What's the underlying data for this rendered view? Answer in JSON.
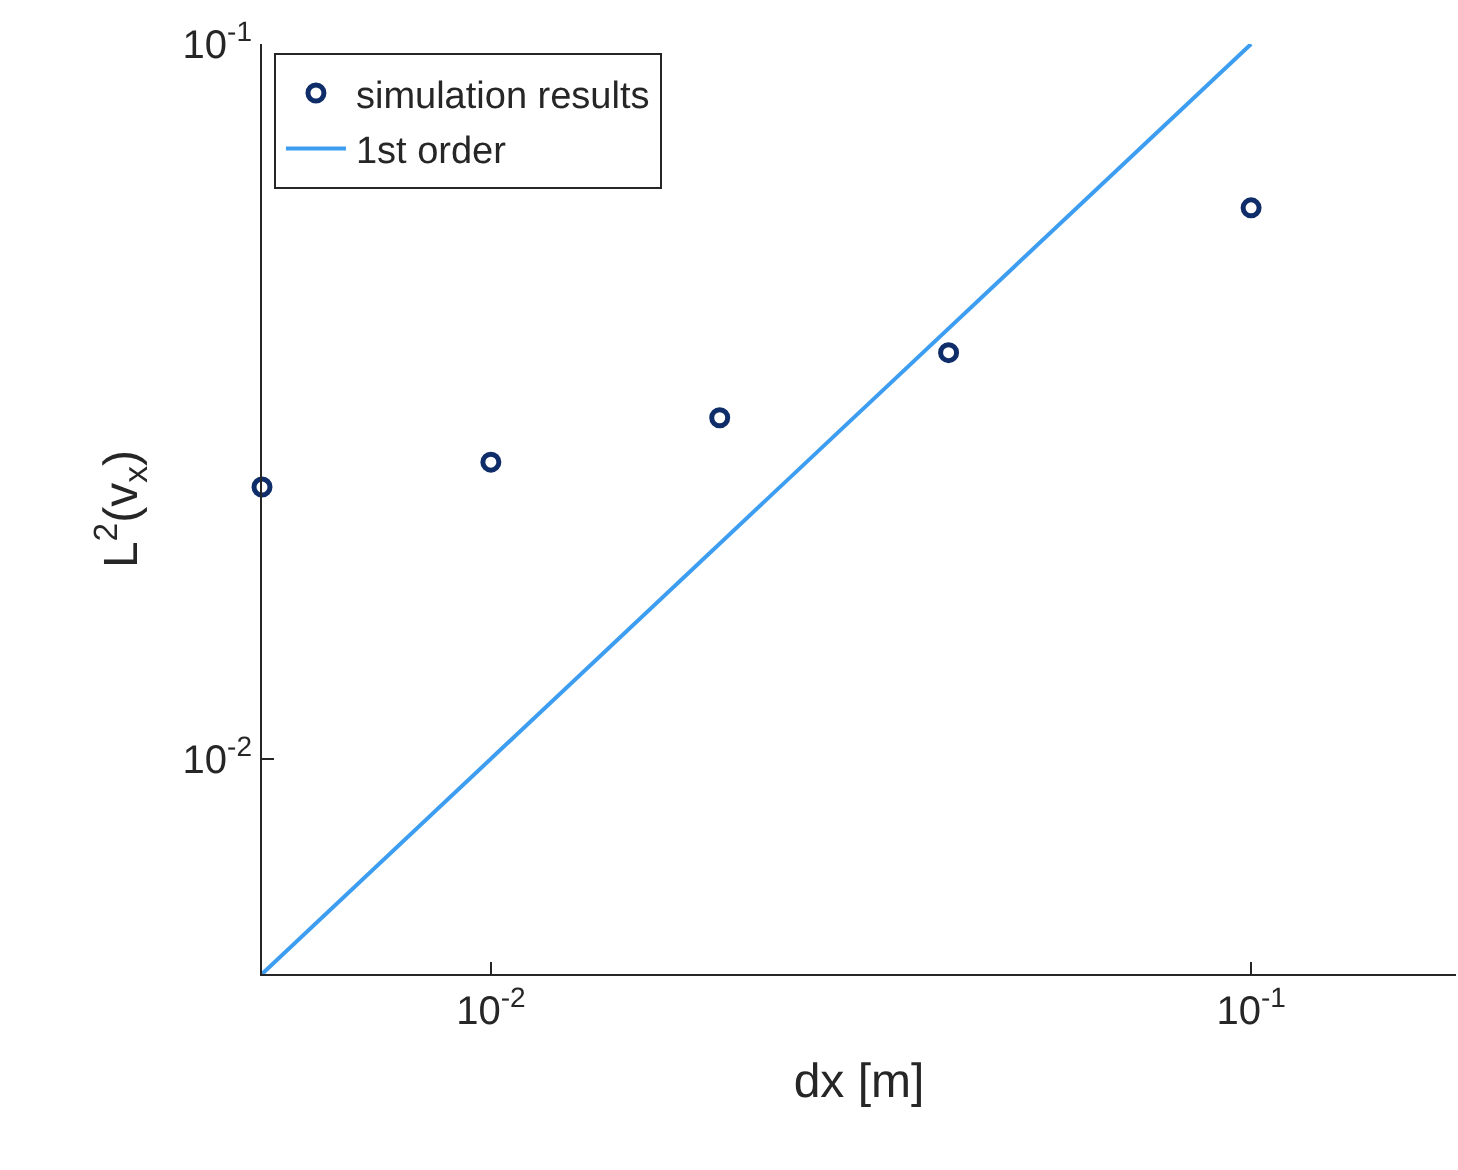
{
  "chart_data": {
    "type": "scatter",
    "xlabel": "dx [m]",
    "ylabel": "L$^{2}$(v$_{x}$)",
    "log": "xy",
    "legend": "top left",
    "xlim": [
      0.005,
      0.186
    ],
    "ylim": [
      0.005,
      0.1
    ],
    "xticks": [
      {
        "value": 0.01,
        "label": "10$^{-2}$"
      },
      {
        "value": 0.1,
        "label": "10$^{-1}$"
      }
    ],
    "yticks": [
      {
        "value": 0.01,
        "label": "10$^{-2}$"
      },
      {
        "value": 0.1,
        "label": "10$^{-1}$"
      }
    ],
    "series": [
      {
        "name": "simulation results",
        "marker": "circle",
        "color": "#0f2d69",
        "x": [
          0.005,
          0.01,
          0.02,
          0.04,
          0.1
        ],
        "values": [
          0.024,
          0.026,
          0.03,
          0.037,
          0.059
        ]
      },
      {
        "name": "1st order",
        "type": "line",
        "marker": "none",
        "line_style": "solid",
        "color": "#3d9df0",
        "x": [
          0.005,
          0.1
        ],
        "values": [
          0.005,
          0.1
        ]
      }
    ]
  }
}
